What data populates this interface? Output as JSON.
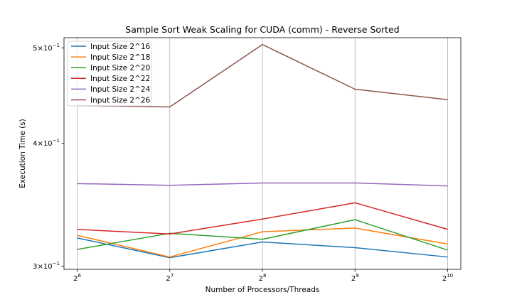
{
  "chart_data": {
    "type": "line",
    "title": "Sample Sort Weak Scaling for CUDA (comm) - Reverse Sorted",
    "xlabel": "Number of Processors/Threads",
    "ylabel": "Execution Time (s)",
    "x_scale": "log2",
    "y_scale": "log",
    "x": [
      64,
      128,
      256,
      512,
      1024
    ],
    "x_tick_labels": [
      {
        "base": "2",
        "exp": "6"
      },
      {
        "base": "2",
        "exp": "7"
      },
      {
        "base": "2",
        "exp": "8"
      },
      {
        "base": "2",
        "exp": "9"
      },
      {
        "base": "2",
        "exp": "10"
      }
    ],
    "y_ticks": [
      {
        "value": 0.3,
        "mant": "3",
        "times": "×",
        "base": "10",
        "exp": "−1"
      },
      {
        "value": 0.4,
        "mant": "4",
        "times": "×",
        "base": "10",
        "exp": "−1"
      },
      {
        "value": 0.5,
        "mant": "5",
        "times": "×",
        "base": "10",
        "exp": "−1"
      }
    ],
    "xlim": [
      58,
      1130
    ],
    "ylim": [
      0.2978,
      0.5122
    ],
    "grid": "x-only",
    "legend_position": "top-left",
    "series": [
      {
        "name": "Input Size 2^16",
        "color": "#1f77b4",
        "values": [
          0.3205,
          0.306,
          0.3175,
          0.3133,
          0.3065
        ]
      },
      {
        "name": "Input Size 2^18",
        "color": "#ff7f0e",
        "values": [
          0.3225,
          0.3065,
          0.3252,
          0.328,
          0.316
        ]
      },
      {
        "name": "Input Size 2^20",
        "color": "#2ca02c",
        "values": [
          0.312,
          0.324,
          0.3195,
          0.3345,
          0.3115
        ]
      },
      {
        "name": "Input Size 2^22",
        "color": "#d62728",
        "values": [
          0.327,
          0.3235,
          0.335,
          0.348,
          0.327
        ]
      },
      {
        "name": "Input Size 2^24",
        "color": "#9467bd",
        "values": [
          0.364,
          0.3625,
          0.3645,
          0.3645,
          0.362
        ]
      },
      {
        "name": "Input Size 2^26",
        "color": "#8c564b",
        "values": [
          0.437,
          0.4355,
          0.504,
          0.454,
          0.443
        ]
      }
    ]
  }
}
